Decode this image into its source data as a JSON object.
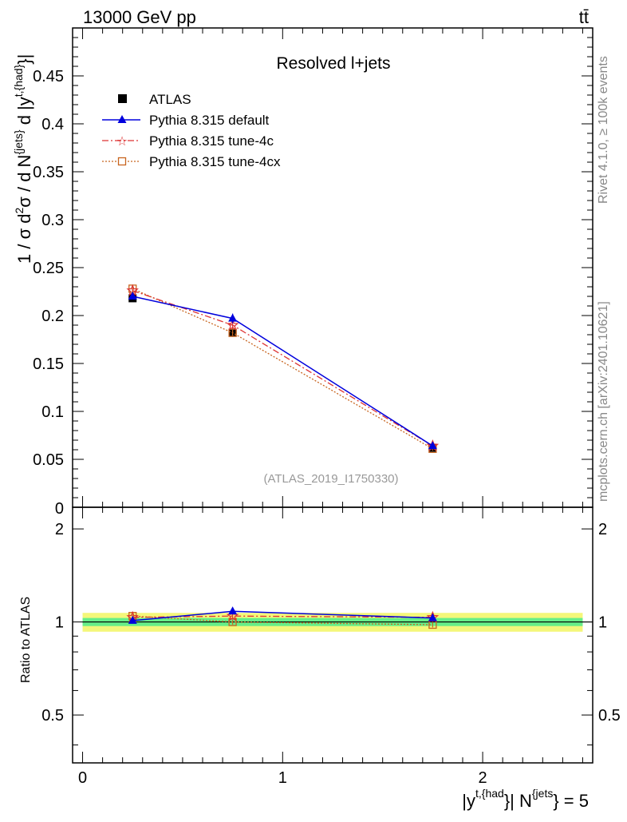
{
  "header": {
    "energy_label": "13000 GeV pp",
    "process_label": "tt̄"
  },
  "side_labels": {
    "rivet": "Rivet 4.1.0, ≥ 100k events",
    "source": "mcplots.cern.ch [arXiv:2401.10621]"
  },
  "chart_data": [
    {
      "type": "line",
      "title": "Resolved l+jets",
      "analysis_tag": "(ATLAS_2019_I1750330)",
      "ylabel": "1 / σ d²σ / d N^{jets} d |y^{t,{had}}|",
      "xlim": [
        -0.05,
        2.55
      ],
      "ylim": [
        0,
        0.5
      ],
      "yticks": [
        0.05,
        0.1,
        0.15,
        0.2,
        0.25,
        0.3,
        0.35,
        0.4,
        0.45
      ],
      "ytick_labels": [
        "0.05",
        "0.1",
        "0.15",
        "0.2",
        "0.25",
        "0.3",
        "0.35",
        "0.4",
        "0.45"
      ],
      "y_zero_label": "0",
      "legend_position": "top-left",
      "series": [
        {
          "name": "ATLAS",
          "style": "data",
          "color": "#000000",
          "x": [
            0.25,
            0.75,
            1.75
          ],
          "values": [
            0.218,
            0.182,
            0.062
          ],
          "errors": [
            0.003,
            0.003,
            0.002
          ]
        },
        {
          "name": "Pythia 8.315 default",
          "style": "triangle-solid",
          "color": "#0000dd",
          "x": [
            0.25,
            0.75,
            1.75
          ],
          "values": [
            0.22,
            0.197,
            0.064
          ],
          "errors": [
            0.002,
            0.005,
            0.002
          ]
        },
        {
          "name": "Pythia 8.315 tune-4c",
          "style": "star-dashdot",
          "color": "#dd3333",
          "x": [
            0.25,
            0.75,
            1.75
          ],
          "values": [
            0.226,
            0.19,
            0.064
          ],
          "errors": [
            0.002,
            0.004,
            0.002
          ]
        },
        {
          "name": "Pythia 8.315 tune-4cx",
          "style": "square-dotted",
          "color": "#c8641e",
          "x": [
            0.25,
            0.75,
            1.75
          ],
          "values": [
            0.228,
            0.182,
            0.061
          ],
          "errors": [
            0.004,
            0.003,
            0.002
          ]
        }
      ]
    },
    {
      "type": "line",
      "ylabel": "Ratio to ATLAS",
      "xlabel_main": "|y^{t,{had}}| N^{jets}",
      "xlabel_suffix": "= 5",
      "xlim": [
        -0.05,
        2.55
      ],
      "ylim": [
        0.35,
        2.35
      ],
      "xticks": [
        0,
        1,
        2
      ],
      "xtick_labels": [
        "0",
        "1",
        "2"
      ],
      "yticks": [
        0.5,
        1,
        2
      ],
      "ytick_labels": [
        "0.5",
        "1",
        "2"
      ],
      "band_inner": 0.03,
      "band_outer": 0.07,
      "band_colors": {
        "inner": "#66ee88",
        "outer": "#f4f77a"
      },
      "series": [
        {
          "name": "Pythia 8.315 default",
          "x": [
            0.25,
            0.75,
            1.75
          ],
          "values": [
            1.01,
            1.083,
            1.03
          ],
          "errors": [
            0.01,
            0.025,
            0.02
          ]
        },
        {
          "name": "Pythia 8.315 tune-4c",
          "x": [
            0.25,
            0.75,
            1.75
          ],
          "values": [
            1.035,
            1.045,
            1.035
          ],
          "errors": [
            0.01,
            0.022,
            0.02
          ]
        },
        {
          "name": "Pythia 8.315 tune-4cx",
          "x": [
            0.25,
            0.75,
            1.75
          ],
          "values": [
            1.045,
            1.0,
            0.98
          ],
          "errors": [
            0.015,
            0.02,
            0.02
          ]
        }
      ]
    }
  ]
}
